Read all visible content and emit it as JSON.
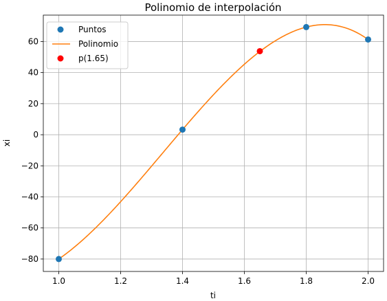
{
  "chart_data": {
    "type": "scatter",
    "title": "Polinomio de interpolación",
    "xlabel": "ti",
    "ylabel": "xi",
    "xlim": [
      0.95,
      2.05
    ],
    "ylim": [
      -88,
      77
    ],
    "xticks": [
      1.0,
      1.2,
      1.4,
      1.6,
      1.8,
      2.0
    ],
    "xtick_labels": [
      "1.0",
      "1.2",
      "1.4",
      "1.6",
      "1.8",
      "2.0"
    ],
    "yticks": [
      -80,
      -60,
      -40,
      -20,
      0,
      20,
      40,
      60
    ],
    "ytick_labels": [
      "−80",
      "−60",
      "−40",
      "−20",
      "0",
      "20",
      "40",
      "60"
    ],
    "grid": true,
    "legend_position": "top-left",
    "series": [
      {
        "name": "Puntos",
        "kind": "scatter",
        "color": "#1f77b4",
        "x": [
          1.0,
          1.4,
          1.8,
          2.0
        ],
        "y": [
          -80,
          3.3,
          69.3,
          61.3
        ]
      },
      {
        "name": "Polinomio",
        "kind": "line",
        "color": "#ff7f0e",
        "x": [
          1.0,
          1.4,
          1.8,
          2.0
        ],
        "y": [
          -80,
          3.3,
          69.3,
          61.3
        ]
      },
      {
        "name": "p(1.65)",
        "kind": "scatter",
        "color": "#ff0000",
        "x": [
          1.65
        ],
        "y": [
          53.8
        ]
      }
    ]
  }
}
